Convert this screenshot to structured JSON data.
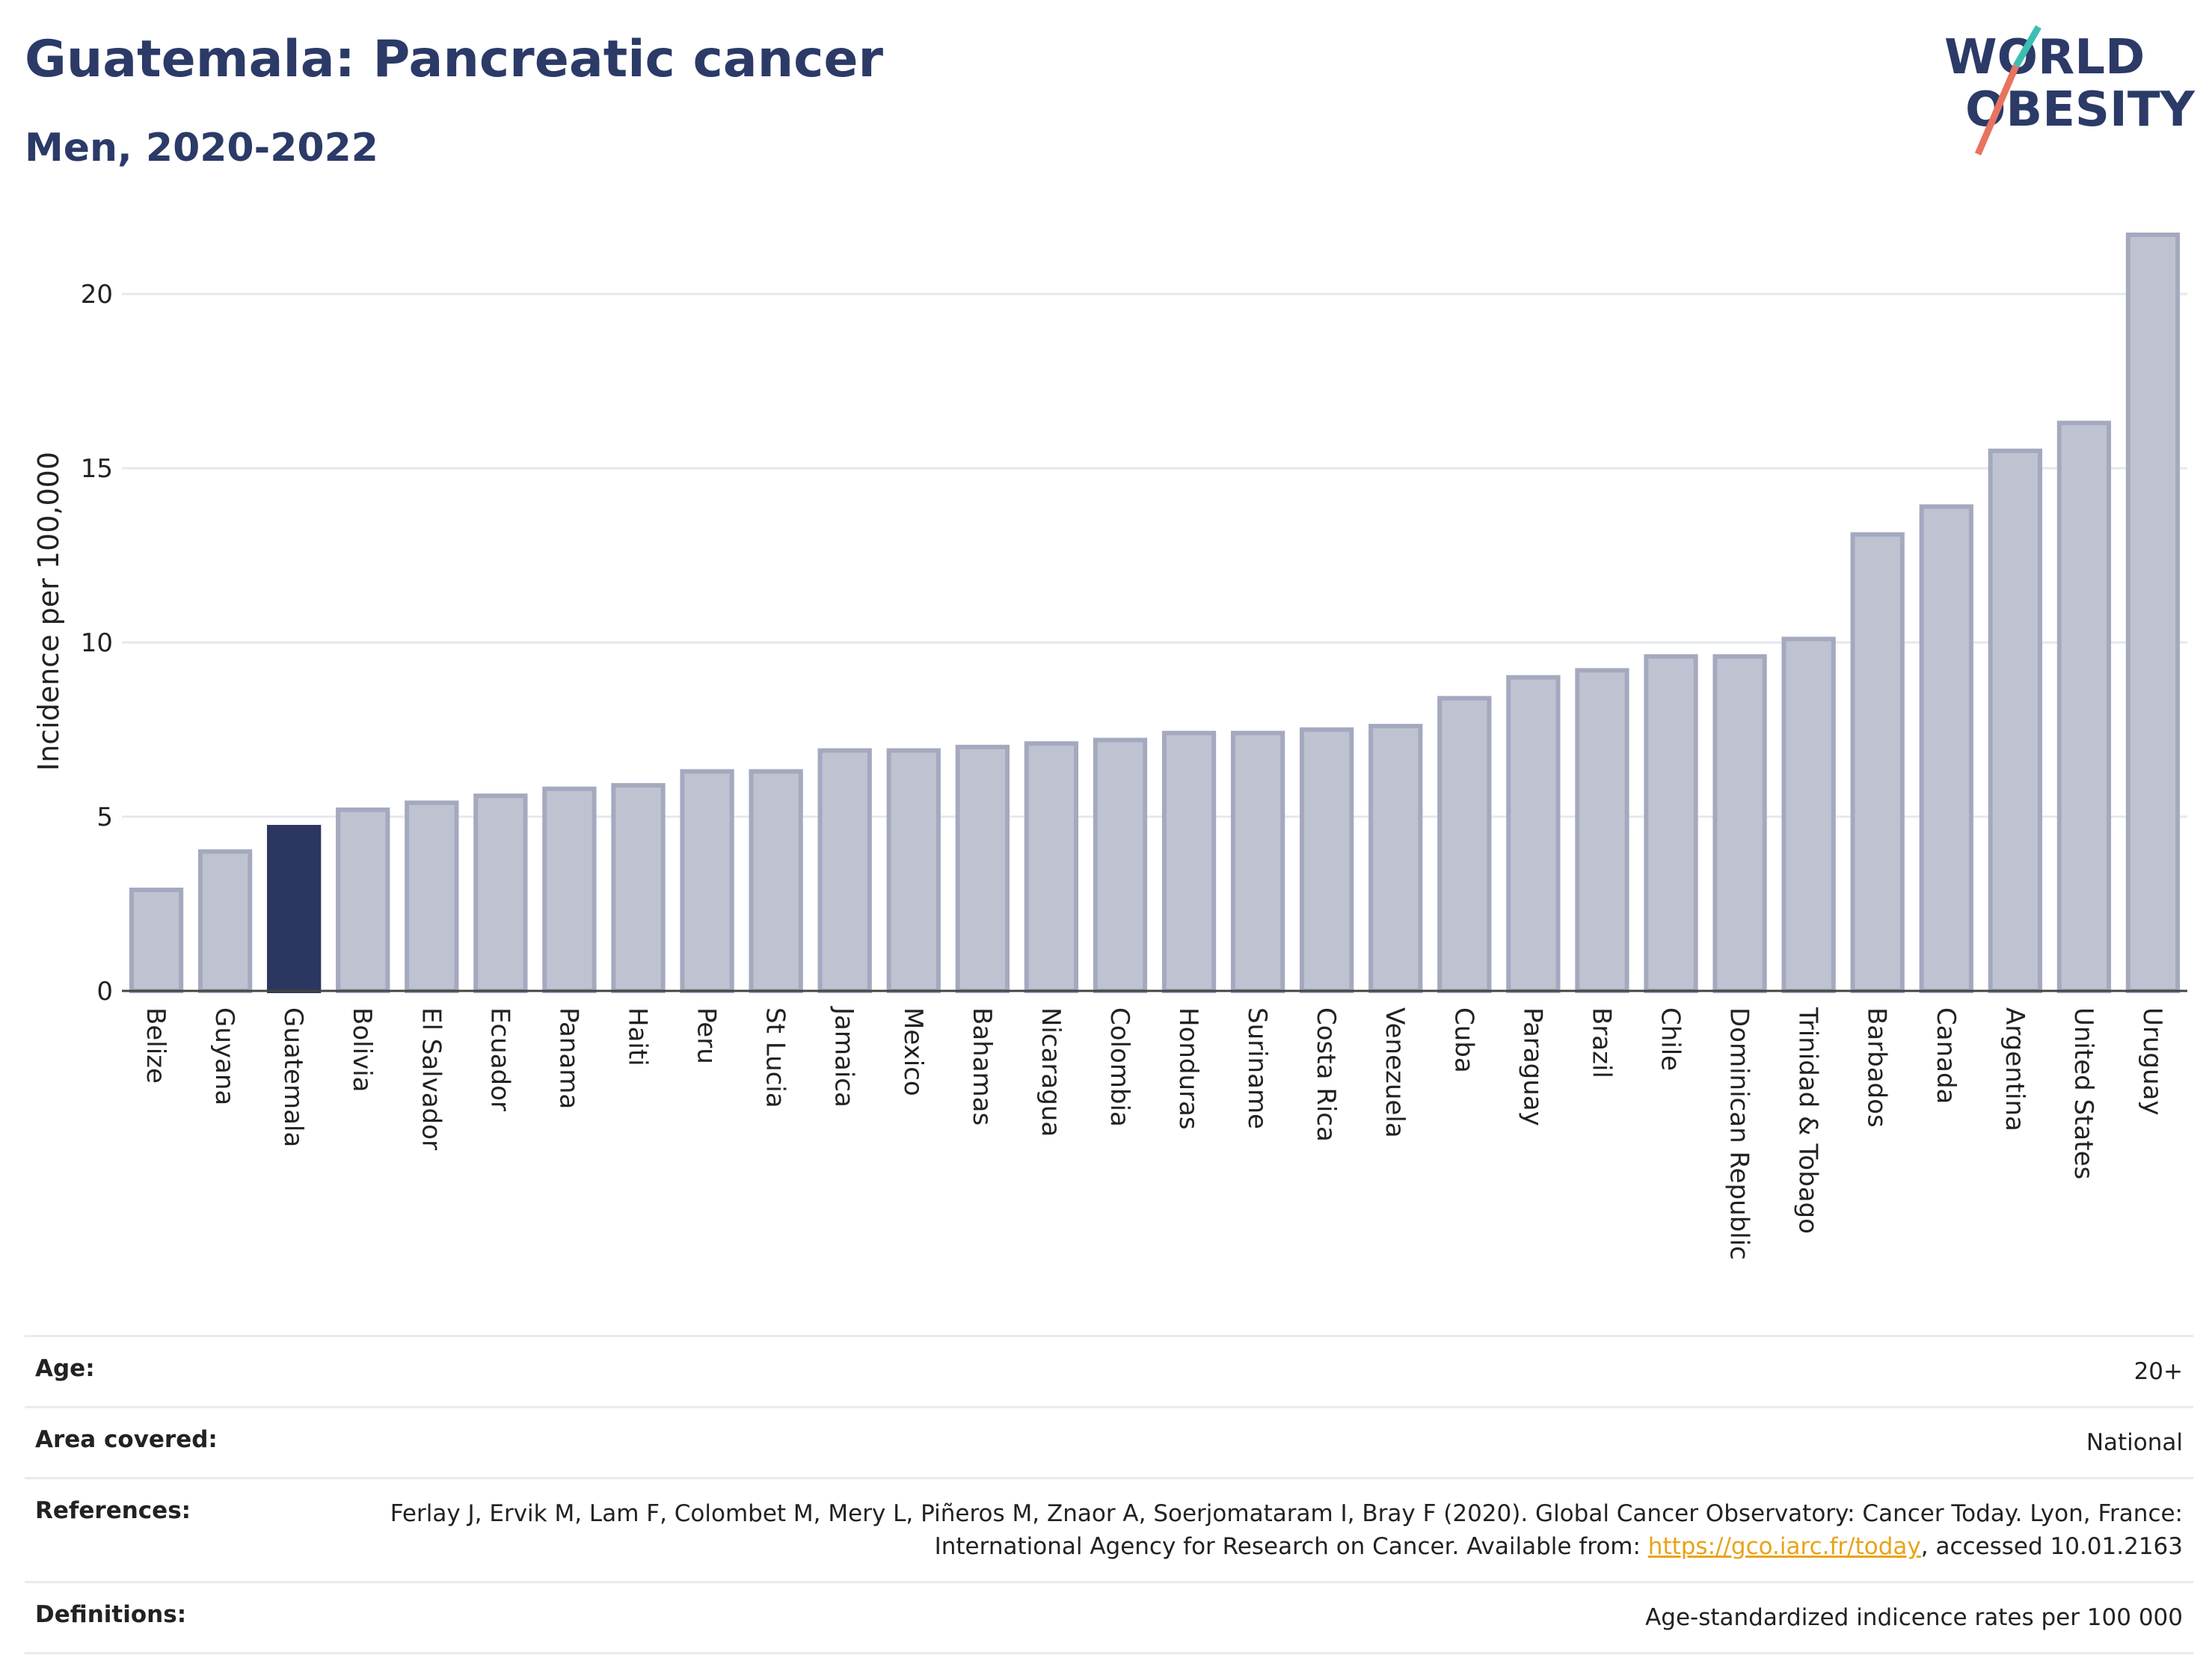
{
  "header": {
    "title": "Guatemala: Pancreatic cancer",
    "subtitle": "Men, 2020-2022"
  },
  "logo": {
    "line1": "WORLD",
    "line2": "OBESITY",
    "slash_colors": [
      "#3bbfb3",
      "#e8735e"
    ],
    "text_color": "#2b3a67"
  },
  "colors": {
    "highlight_bar": "#2b3761",
    "bar_fill": "#bfc3d1",
    "bar_stroke": "#a4a9bf",
    "grid": "#e6e8ee",
    "axis_text": "#222222"
  },
  "chart_data": {
    "type": "bar",
    "ylabel": "Incidence per 100,000",
    "xlabel": "",
    "ylim": [
      0,
      22
    ],
    "yticks": [
      0,
      5,
      10,
      15,
      20
    ],
    "highlight": "Guatemala",
    "grid": true,
    "categories": [
      "Belize",
      "Guyana",
      "Guatemala",
      "Bolivia",
      "El Salvador",
      "Ecuador",
      "Panama",
      "Haiti",
      "Peru",
      "St Lucia",
      "Jamaica",
      "Mexico",
      "Bahamas",
      "Nicaragua",
      "Colombia",
      "Honduras",
      "Suriname",
      "Costa Rica",
      "Venezuela",
      "Cuba",
      "Paraguay",
      "Brazil",
      "Chile",
      "Dominican Republic",
      "Trinidad & Tobago",
      "Barbados",
      "Canada",
      "Argentina",
      "United States",
      "Uruguay"
    ],
    "values": [
      2.9,
      4.0,
      4.7,
      5.2,
      5.4,
      5.6,
      5.8,
      5.9,
      6.3,
      6.3,
      6.9,
      6.9,
      7.0,
      7.1,
      7.2,
      7.4,
      7.4,
      7.5,
      7.6,
      8.4,
      9.0,
      9.2,
      9.6,
      9.6,
      10.1,
      13.1,
      13.9,
      15.5,
      16.3,
      21.7
    ]
  },
  "meta": {
    "age_label": "Age:",
    "age_value": "20+",
    "area_label": "Area covered:",
    "area_value": "National",
    "references_label": "References:",
    "references_text": "Ferlay J, Ervik M, Lam F, Colombet M, Mery L, Piñeros M, Znaor A, Soerjomataram I, Bray F (2020). Global Cancer Observatory: Cancer Today. Lyon, France: International Agency for Research on Cancer. Available from: ",
    "references_link": "https://gco.iarc.fr/today",
    "references_suffix": ", accessed 10.01.2163",
    "definitions_label": "Definitions:",
    "definitions_value": "Age-standardized indicence rates per 100 000"
  }
}
